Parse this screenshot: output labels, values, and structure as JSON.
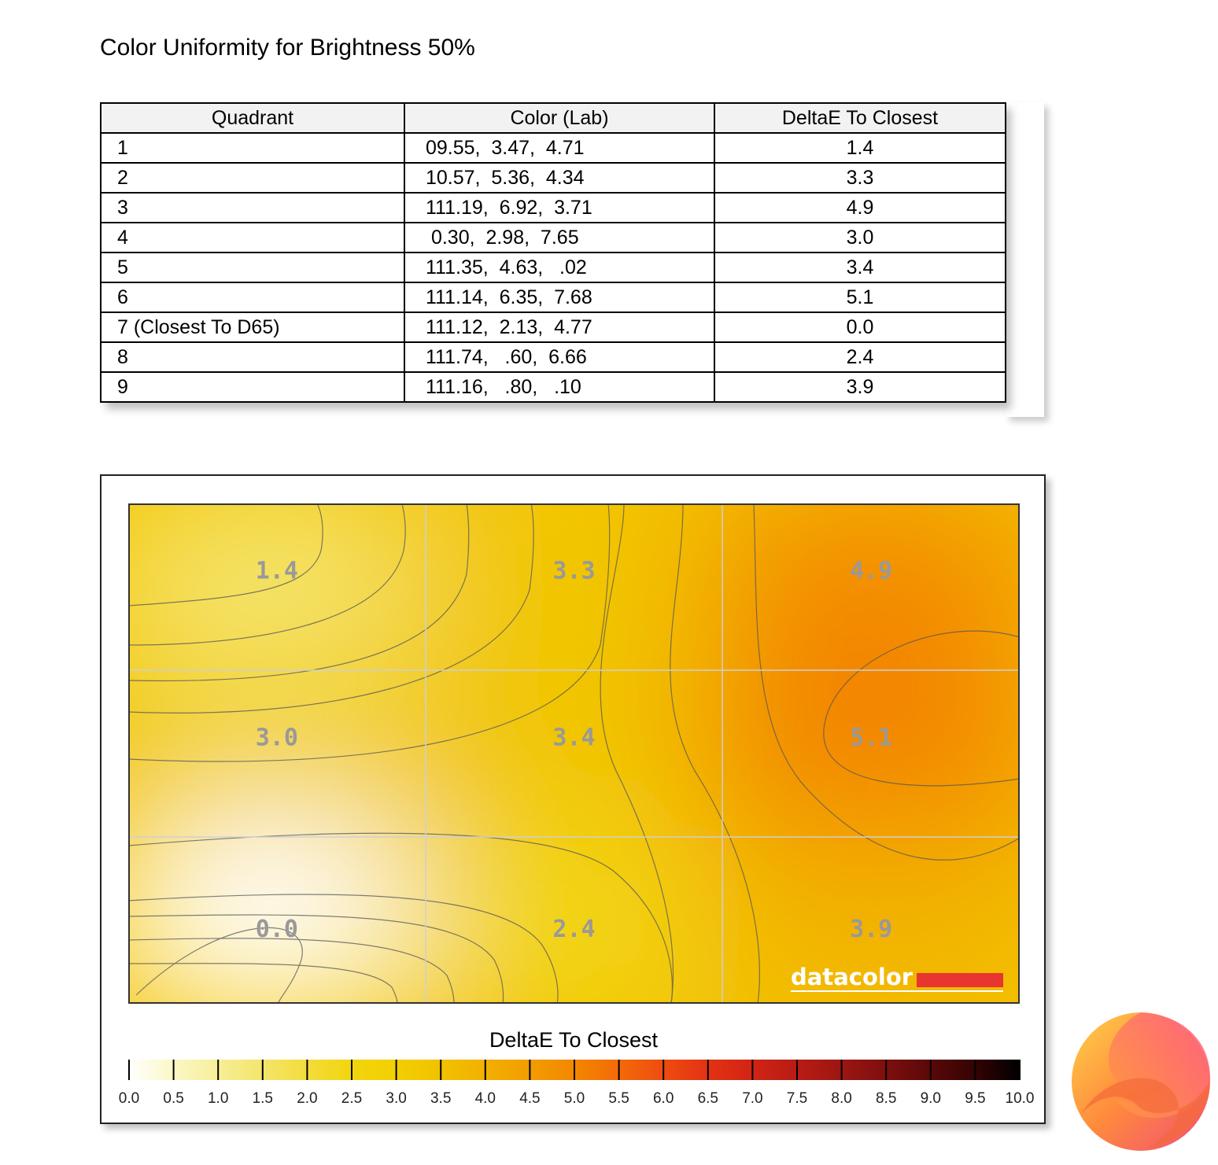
{
  "page": {
    "title": "Color Uniformity for Brightness 50%"
  },
  "table": {
    "headers": [
      "Quadrant",
      "Color (Lab)",
      "DeltaE To Closest"
    ],
    "rows": [
      {
        "quadrant": "1",
        "lab": "09.55,  3.47,  4.71",
        "deltae": "1.4"
      },
      {
        "quadrant": "2",
        "lab": "10.57,  5.36,  4.34",
        "deltae": "3.3"
      },
      {
        "quadrant": "3",
        "lab": "111.19,  6.92,  3.71",
        "deltae": "4.9"
      },
      {
        "quadrant": "4",
        "lab": " 0.30,  2.98,  7.65",
        "deltae": "3.0"
      },
      {
        "quadrant": "5",
        "lab": "111.35,  4.63,   .02",
        "deltae": "3.4"
      },
      {
        "quadrant": "6",
        "lab": "111.14,  6.35,  7.68",
        "deltae": "5.1"
      },
      {
        "quadrant": "7 (Closest To D65)",
        "lab": "111.12,  2.13,  4.77",
        "deltae": "0.0"
      },
      {
        "quadrant": "8",
        "lab": "111.74,   .60,  6.66",
        "deltae": "2.4"
      },
      {
        "quadrant": "9",
        "lab": "111.16,   .80,   .10",
        "deltae": "3.9"
      }
    ]
  },
  "chart_data": {
    "type": "heatmap",
    "grid_rows": 3,
    "grid_cols": 3,
    "values": [
      [
        1.4,
        3.3,
        4.9
      ],
      [
        3.0,
        3.4,
        5.1
      ],
      [
        0.0,
        2.4,
        3.9
      ]
    ],
    "labels": [
      [
        "1.4",
        "3.3",
        "4.9"
      ],
      [
        "3.0",
        "3.4",
        "5.1"
      ],
      [
        "0.0",
        "2.4",
        "3.9"
      ]
    ],
    "colorbar": {
      "title": "DeltaE To Closest",
      "min": 0,
      "max": 10,
      "step": 0.5,
      "tick_labels": [
        "0.0",
        "0.5",
        "1.0",
        "1.5",
        "2.0",
        "2.5",
        "3.0",
        "3.5",
        "4.0",
        "4.5",
        "5.0",
        "5.5",
        "6.0",
        "6.5",
        "7.0",
        "7.5",
        "8.0",
        "8.5",
        "9.0",
        "9.5",
        "10.0"
      ],
      "stops": [
        "#ffffff",
        "#fbf7c6",
        "#f7ee98",
        "#f4e56b",
        "#f3dc3b",
        "#f2d50f",
        "#f2cf00",
        "#f1c100",
        "#f2b000",
        "#f29d00",
        "#f38700",
        "#f36a08",
        "#ee4c10",
        "#e33214",
        "#d02415",
        "#b81c14",
        "#9c1612",
        "#7c0f0e",
        "#5a0808",
        "#330303",
        "#000000"
      ]
    },
    "watermark": "datacolor",
    "accent": "#e83530"
  }
}
